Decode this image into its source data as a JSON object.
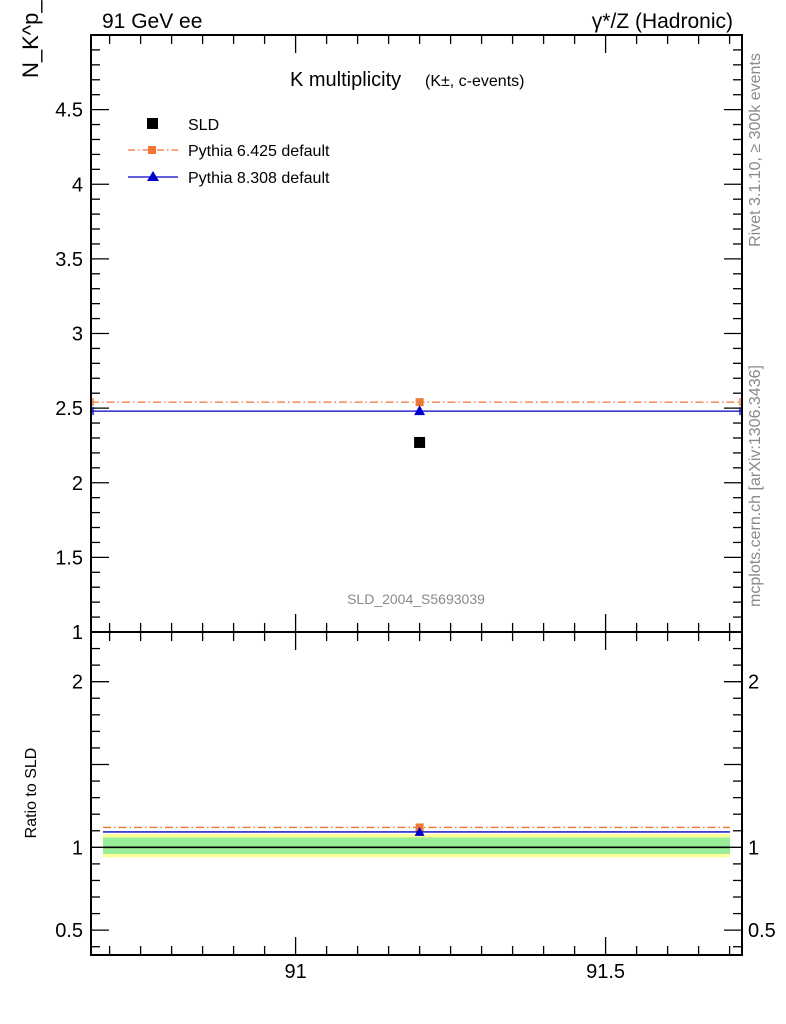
{
  "header": {
    "left": "91 GeV ee",
    "right": "γ*/Z (Hadronic)"
  },
  "side_labels": {
    "rivet": "Rivet 3.1.10, ≥ 300k events",
    "mcplots": "mcplots.cern.ch [arXiv:1306.3436]"
  },
  "chart_data": [
    {
      "type": "scatter",
      "title": "K multiplicity",
      "title_suffix": "(K±, c-events)",
      "ylabel": "N_K^p_m",
      "watermark": "SLD_2004_S5693039",
      "xlim": [
        90.67,
        91.72
      ],
      "ylim": [
        1.0,
        5.0
      ],
      "y_ticks": [
        1,
        1.5,
        2,
        2.5,
        3,
        3.5,
        4,
        4.5
      ],
      "y_tick_labels": [
        "1",
        "1.5",
        "2",
        "2.5",
        "3",
        "3.5",
        "4",
        "4.5"
      ],
      "legend_position": "top-left",
      "series": [
        {
          "name": "SLD",
          "marker": "square",
          "color": "#000000",
          "x": [
            91.2
          ],
          "y": [
            2.27
          ]
        },
        {
          "name": "Pythia 6.425 default",
          "marker": "square",
          "line": "dash-dot",
          "color": "#ee7733",
          "x": [
            91.2
          ],
          "y": [
            2.54
          ]
        },
        {
          "name": "Pythia 8.308 default",
          "marker": "triangle",
          "line": "solid",
          "color": "#0000cc",
          "x": [
            91.2
          ],
          "y": [
            2.48
          ]
        }
      ]
    },
    {
      "type": "line",
      "ylabel": "Ratio to SLD",
      "xlim": [
        90.67,
        91.72
      ],
      "ylim": [
        0.35,
        2.3
      ],
      "x_ticks": [
        91,
        91.5
      ],
      "x_tick_labels": [
        "91",
        "91.5"
      ],
      "y_ticks": [
        0.5,
        1,
        2
      ],
      "y_tick_labels": [
        "0.5",
        "1",
        "2"
      ],
      "bands": [
        {
          "label": "total",
          "lo": 0.94,
          "hi": 1.08,
          "color": "#ffff99"
        },
        {
          "label": "stat",
          "lo": 0.96,
          "hi": 1.06,
          "color": "#99ee99"
        }
      ],
      "series": [
        {
          "name": "Pythia 6.425 default",
          "color": "#ee7733",
          "x": [
            91.2
          ],
          "y": [
            1.12
          ]
        },
        {
          "name": "Pythia 8.308 default",
          "color": "#0000cc",
          "x": [
            91.2
          ],
          "y": [
            1.093
          ]
        }
      ]
    }
  ]
}
